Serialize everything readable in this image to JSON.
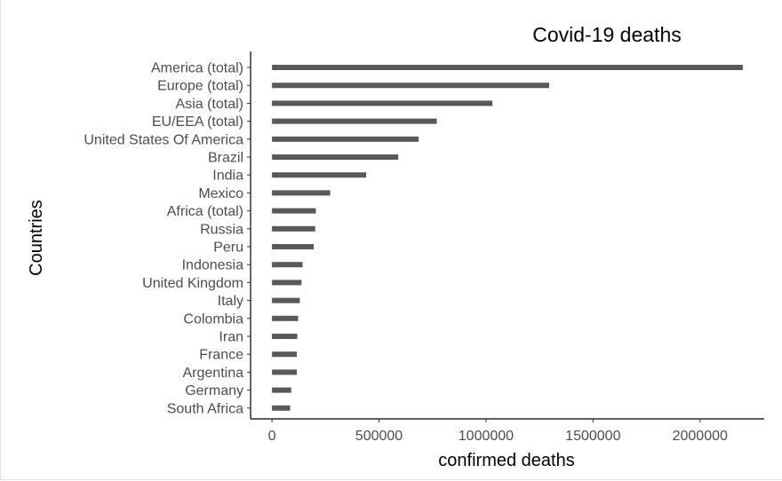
{
  "chart_data": {
    "type": "bar",
    "orientation": "horizontal",
    "title": "Covid-19 deaths",
    "xlabel": "confirmed deaths",
    "ylabel": "Countries",
    "categories": [
      "America (total)",
      "Europe (total)",
      "Asia (total)",
      "EU/EEA (total)",
      "United States Of America",
      "Brazil",
      "India",
      "Mexico",
      "Africa (total)",
      "Russia",
      "Peru",
      "Indonesia",
      "United Kingdom",
      "Italy",
      "Colombia",
      "Iran",
      "France",
      "Argentina",
      "Germany",
      "South Africa"
    ],
    "values": [
      2200000,
      1295000,
      1030000,
      770000,
      685000,
      590000,
      440000,
      272000,
      205000,
      202000,
      195000,
      143000,
      138000,
      130000,
      122000,
      118000,
      116000,
      116000,
      90000,
      85000
    ],
    "xticks": [
      0,
      500000,
      1000000,
      1500000,
      2000000
    ],
    "xlim": [
      -100000,
      2300000
    ],
    "grid": false,
    "bar_color": "#595959"
  }
}
